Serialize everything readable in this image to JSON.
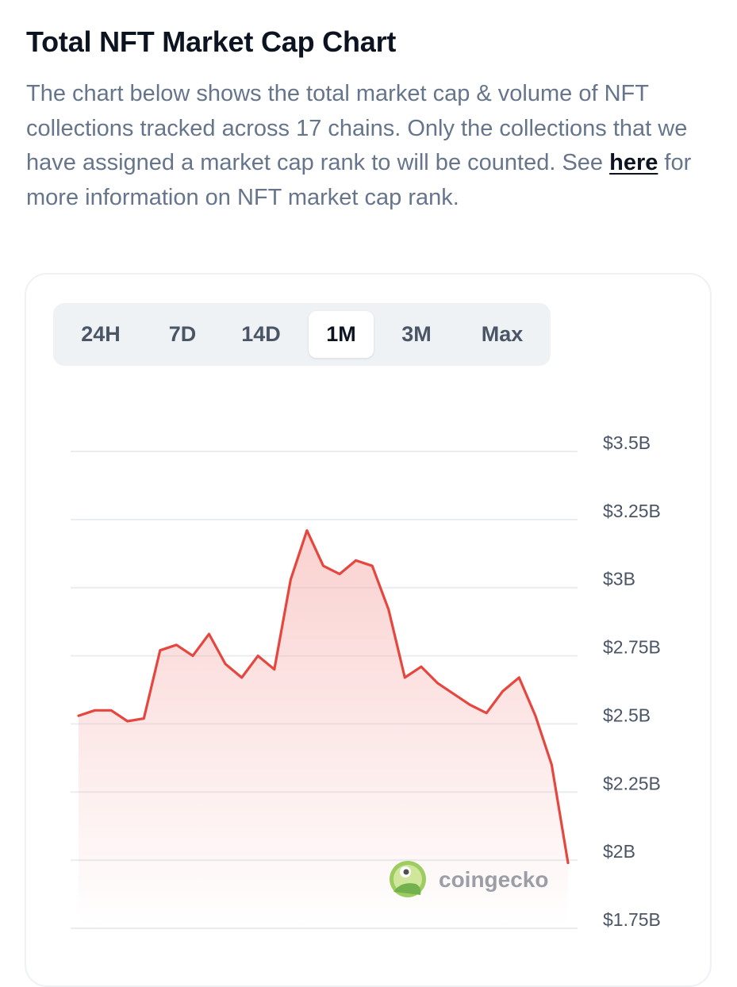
{
  "header": {
    "title": "Total NFT Market Cap Chart",
    "desc_before": "The chart below shows the total market cap & volume of NFT collections tracked across 17 chains. Only the collections that we have assigned a market cap rank to will be counted. See ",
    "link_text": "here",
    "desc_after": " for more information on NFT market cap rank."
  },
  "tabs": [
    {
      "label": "24H",
      "active": false
    },
    {
      "label": "7D",
      "active": false
    },
    {
      "label": "14D",
      "active": false
    },
    {
      "label": "1M",
      "active": true
    },
    {
      "label": "3M",
      "active": false
    },
    {
      "label": "Max",
      "active": false
    }
  ],
  "watermark": {
    "text": "coingecko"
  },
  "colors": {
    "line": "#e5473f",
    "fill": "#f4a3a0",
    "grid": "#e9edf2"
  },
  "chart_data": {
    "type": "area",
    "title": "Total NFT Market Cap",
    "period": "1M",
    "y_ticks": [
      "$3.5B",
      "$3.25B",
      "$3B",
      "$2.75B",
      "$2.5B",
      "$2.25B",
      "$2B",
      "$1.75B"
    ],
    "y_tick_values": [
      3.5,
      3.25,
      3.0,
      2.75,
      2.5,
      2.25,
      2.0,
      1.75
    ],
    "ylim": [
      1.75,
      3.5
    ],
    "y_unit": "USD billions",
    "series": [
      {
        "name": "Market Cap",
        "values": [
          2.53,
          2.55,
          2.55,
          2.51,
          2.52,
          2.77,
          2.79,
          2.75,
          2.83,
          2.72,
          2.67,
          2.75,
          2.7,
          3.03,
          3.21,
          3.08,
          3.05,
          3.1,
          3.08,
          2.92,
          2.67,
          2.71,
          2.65,
          2.61,
          2.57,
          2.54,
          2.62,
          2.67,
          2.53,
          2.35,
          1.99
        ]
      }
    ]
  }
}
